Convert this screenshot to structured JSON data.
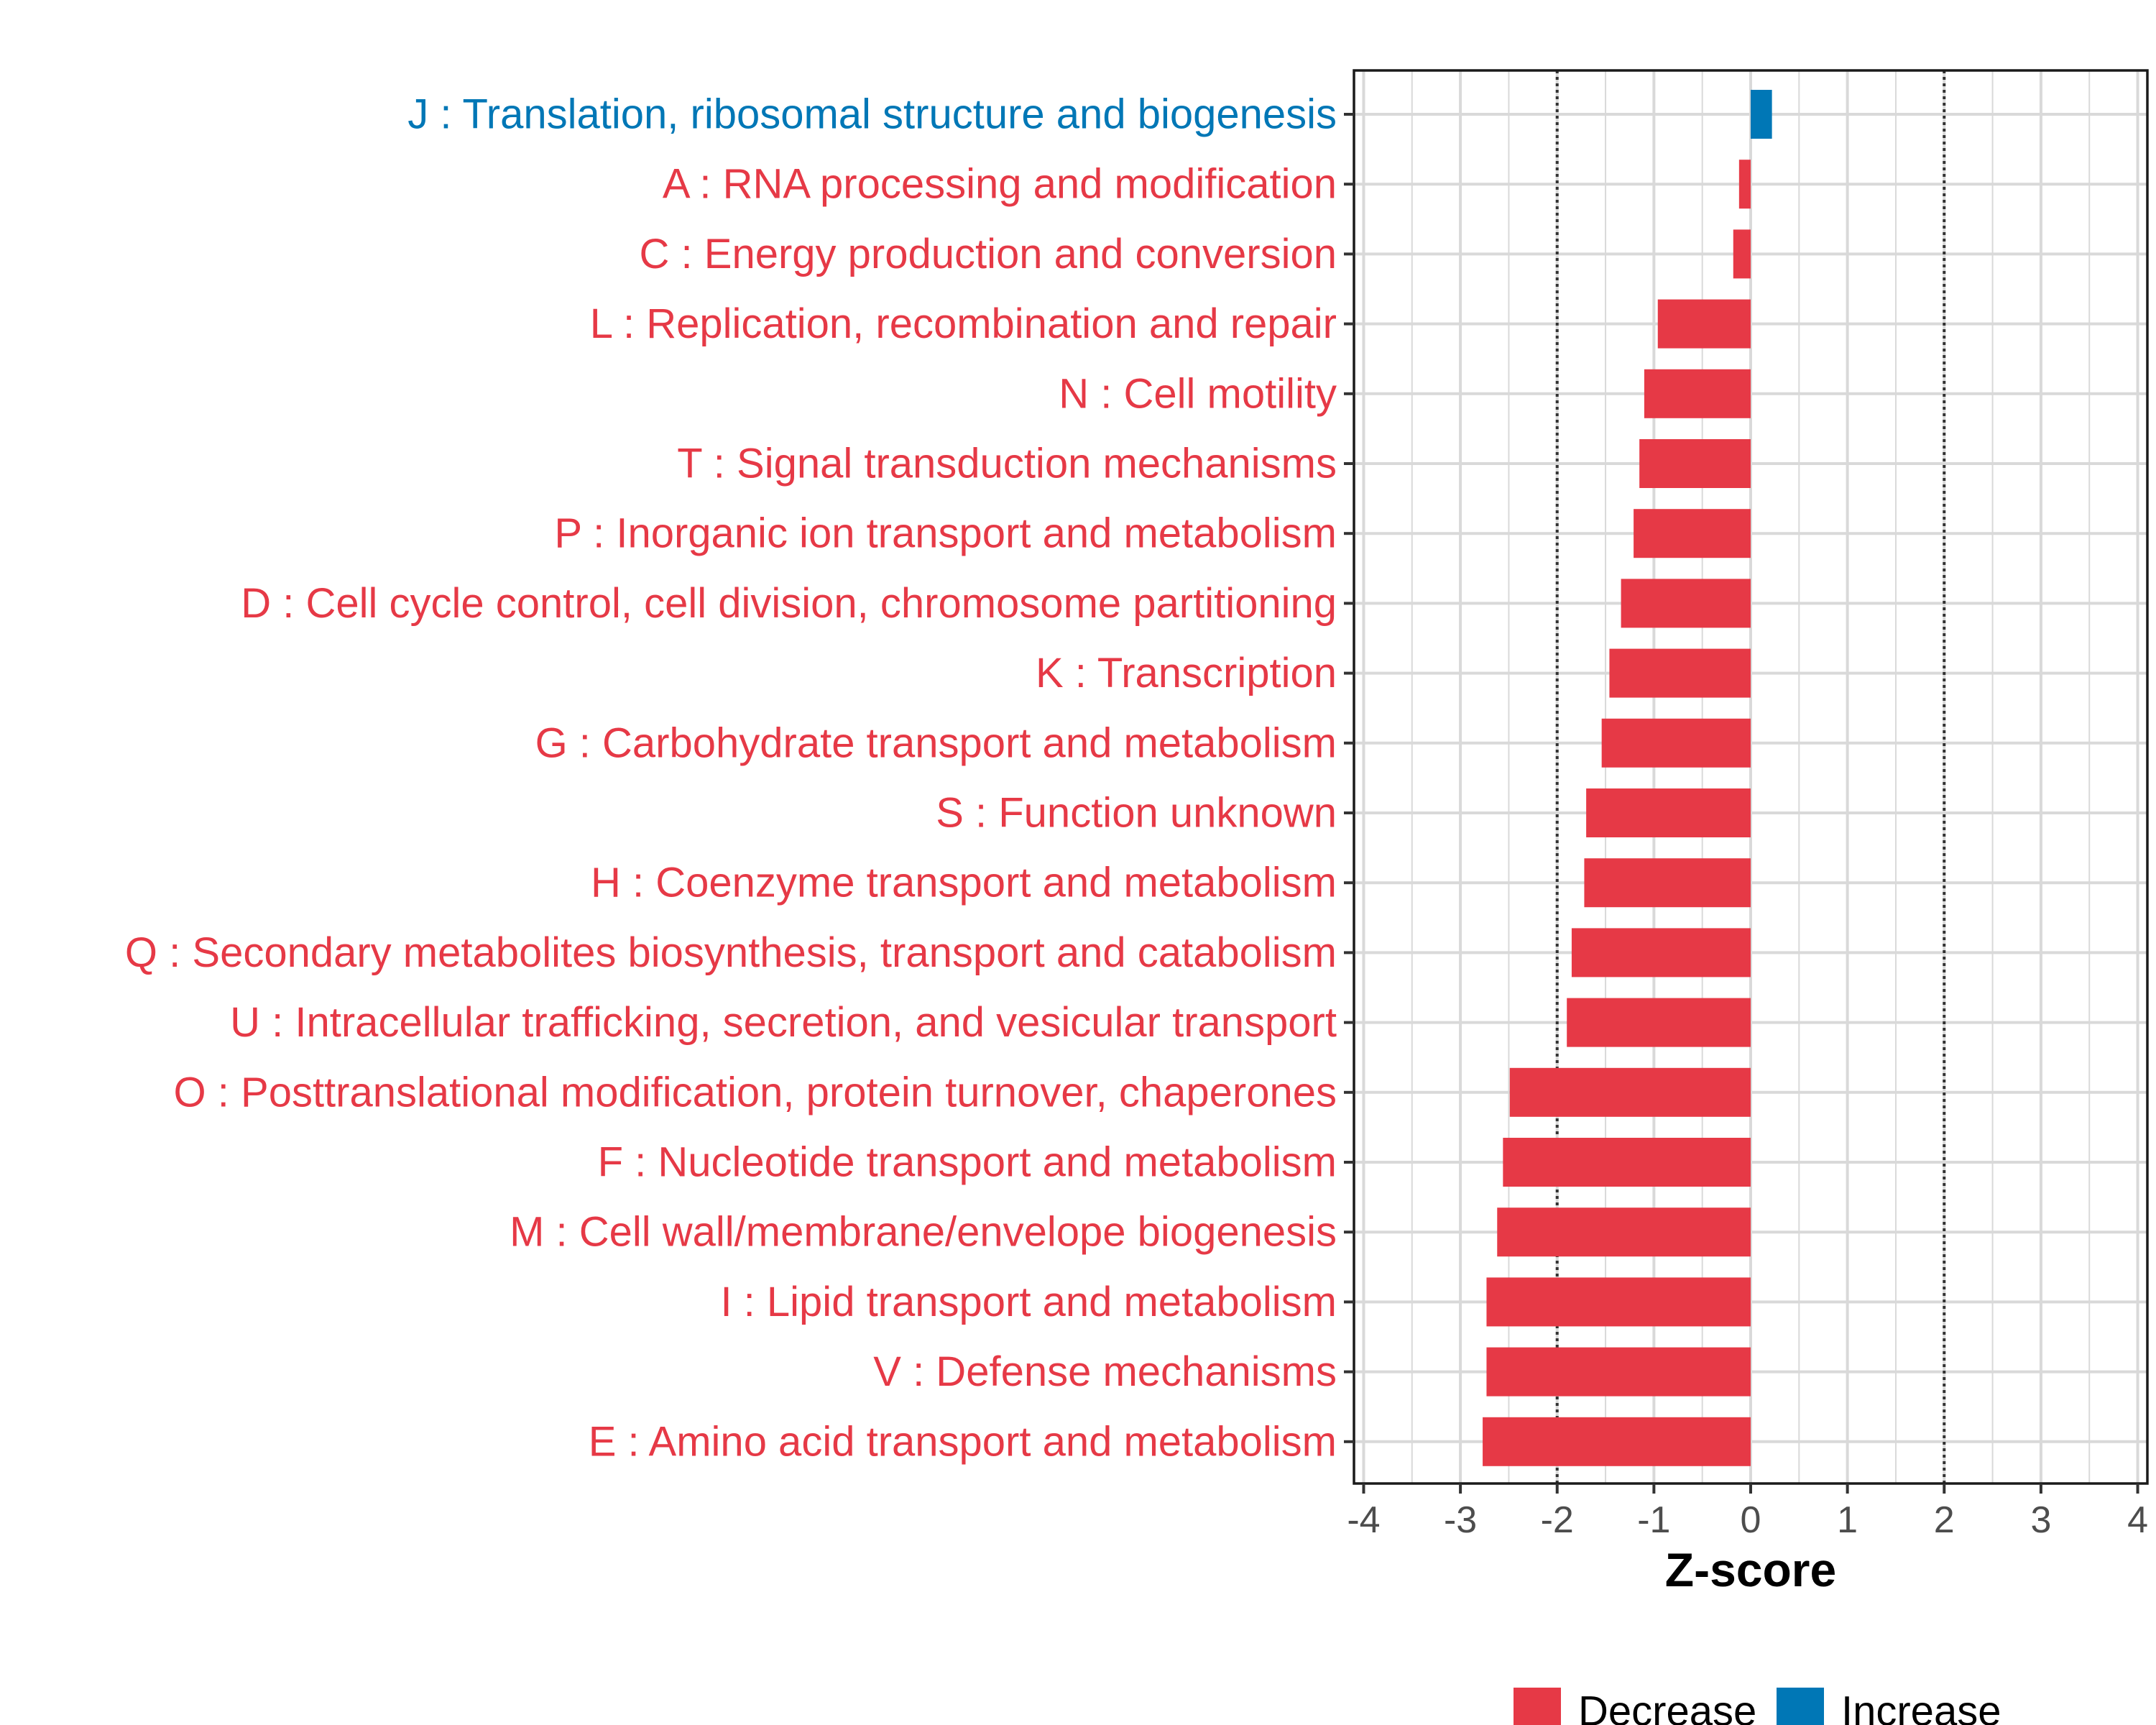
{
  "chart_data": {
    "type": "bar",
    "orientation": "horizontal",
    "title": "",
    "xlabel": "Z-score",
    "ylabel": "",
    "xlim": [
      -4.1,
      4.1
    ],
    "xticks": [
      "-4",
      "-3",
      "-2",
      "-1",
      "0",
      "1",
      "2",
      "3",
      "4"
    ],
    "reference_lines": [
      -2,
      2
    ],
    "grid": true,
    "legend_position": "bottom",
    "colors": {
      "Decrease": "#e63946",
      "Increase": "#0077b6"
    },
    "legend": [
      "Decrease",
      "Increase"
    ],
    "categories": [
      "J : Translation, ribosomal structure and biogenesis",
      "A : RNA processing and modification",
      "C : Energy production and conversion",
      "L : Replication, recombination and repair",
      "N : Cell motility",
      "T : Signal transduction mechanisms",
      "P : Inorganic ion transport and metabolism",
      "D : Cell cycle control, cell division, chromosome partitioning",
      "K : Transcription",
      "G : Carbohydrate transport and metabolism",
      "S : Function unknown",
      "H : Coenzyme transport and metabolism",
      "Q : Secondary metabolites biosynthesis, transport and catabolism",
      "U : Intracellular trafficking, secretion, and vesicular transport",
      "O : Posttranslational modification, protein turnover, chaperones",
      "F : Nucleotide transport and metabolism",
      "M : Cell wall/membrane/envelope biogenesis",
      "I : Lipid transport and metabolism",
      "V : Defense mechanisms",
      "E : Amino acid transport and metabolism"
    ],
    "values": [
      0.22,
      -0.12,
      -0.18,
      -0.96,
      -1.1,
      -1.15,
      -1.21,
      -1.34,
      -1.46,
      -1.54,
      -1.7,
      -1.72,
      -1.85,
      -1.9,
      -2.49,
      -2.56,
      -2.62,
      -2.73,
      -2.73,
      -2.77
    ],
    "groups": [
      "Increase",
      "Decrease",
      "Decrease",
      "Decrease",
      "Decrease",
      "Decrease",
      "Decrease",
      "Decrease",
      "Decrease",
      "Decrease",
      "Decrease",
      "Decrease",
      "Decrease",
      "Decrease",
      "Decrease",
      "Decrease",
      "Decrease",
      "Decrease",
      "Decrease",
      "Decrease"
    ]
  }
}
